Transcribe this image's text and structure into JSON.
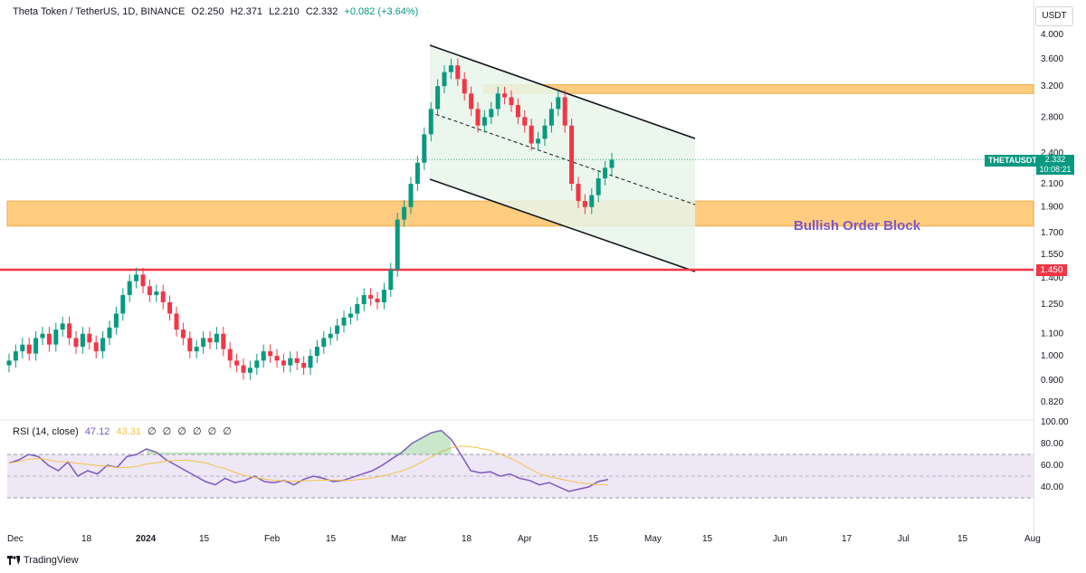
{
  "header": {
    "symbol": "Theta Token / TetherUS, 1D, BINANCE",
    "open": "O2.250",
    "high": "H2.371",
    "low": "L2.210",
    "close": "C2.332",
    "change": "+0.082 (+3.64%)"
  },
  "currency": "USDT",
  "price_axis": [
    "4.000",
    "3.600",
    "3.200",
    "2.800",
    "2.400",
    "2.100",
    "1.900",
    "1.700",
    "1.550",
    "1.400",
    "1.250",
    "1.100",
    "1.000",
    "0.900",
    "0.820"
  ],
  "time_axis": [
    "Dec",
    "18",
    "2024",
    "15",
    "Feb",
    "15",
    "Mar",
    "18",
    "Apr",
    "15",
    "May",
    "15",
    "Jun",
    "17",
    "Jul",
    "15",
    "Aug"
  ],
  "rsi": {
    "title": "RSI (14, close)",
    "value": "47.12",
    "ma": "43.31",
    "extras": [
      "∅",
      "∅",
      "∅",
      "∅",
      "∅",
      "∅"
    ],
    "axis": [
      "100.00",
      "80.00",
      "60.00",
      "40.00"
    ]
  },
  "last_price": {
    "ticker": "THETAUSDT",
    "price": "2.332",
    "countdown": "10:08:21"
  },
  "support_level": "1.450",
  "annotation": "Bullish Order Block",
  "footer": {
    "brand": "TradingView"
  },
  "colors": {
    "up": "#089981",
    "down": "#f23645",
    "order_block": "#ffcc80",
    "channel_fill": "#e8f5e9",
    "rsi_line": "#7e57c2",
    "rsi_ma": "#f5c242",
    "rsi_band": "#ede7f6"
  },
  "chart_data": {
    "type": "candlestick",
    "series": [
      {
        "name": "THETAUSDT",
        "close_path": [
          0.98,
          1.02,
          1.05,
          1.01,
          1.08,
          1.1,
          1.05,
          1.12,
          1.15,
          1.08,
          1.04,
          1.1,
          1.06,
          1.02,
          1.08,
          1.13,
          1.2,
          1.3,
          1.38,
          1.42,
          1.35,
          1.3,
          1.32,
          1.26,
          1.2,
          1.12,
          1.08,
          1.02,
          1.04,
          1.08,
          1.06,
          1.1,
          1.03,
          0.98,
          0.96,
          0.93,
          0.95,
          0.98,
          1.02,
          1.0,
          0.98,
          0.96,
          0.99,
          0.97,
          0.95,
          1.0,
          1.04,
          1.08,
          1.1,
          1.14,
          1.18,
          1.2,
          1.25,
          1.3,
          1.28,
          1.26,
          1.33,
          1.45,
          1.8,
          1.9,
          2.1,
          2.3,
          2.6,
          2.9,
          3.2,
          3.4,
          3.5,
          3.3,
          3.1,
          2.9,
          2.7,
          2.8,
          2.9,
          3.1,
          3.05,
          2.95,
          2.8,
          2.7,
          2.5,
          2.55,
          2.7,
          2.9,
          3.05,
          2.7,
          2.1,
          1.95,
          1.9,
          2.0,
          2.15,
          2.25,
          2.33
        ]
      },
      {
        "name": "RSI",
        "values": [
          62,
          65,
          70,
          68,
          60,
          55,
          63,
          50,
          55,
          52,
          60,
          58,
          68,
          70,
          75,
          72,
          65,
          60,
          55,
          50,
          45,
          42,
          48,
          44,
          46,
          50,
          45,
          44,
          46,
          42,
          47,
          50,
          48,
          45,
          46,
          49,
          52,
          55,
          60,
          66,
          72,
          80,
          85,
          90,
          92,
          84,
          70,
          55,
          53,
          54,
          50,
          52,
          48,
          46,
          42,
          44,
          40,
          36,
          38,
          40,
          45,
          47
        ]
      }
    ],
    "levels": [
      1.45
    ],
    "order_blocks": [
      {
        "from": 1.75,
        "to": 1.95
      },
      {
        "from": 3.1,
        "to": 3.22
      }
    ]
  }
}
